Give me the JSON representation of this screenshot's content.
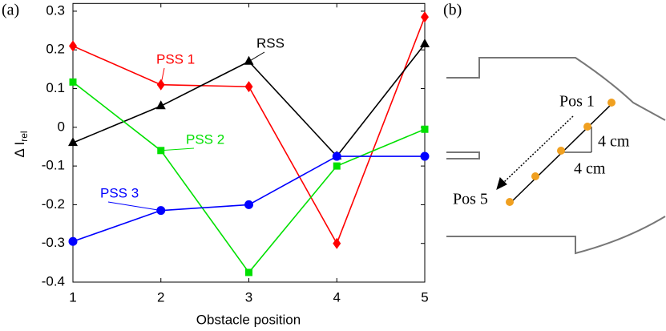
{
  "chart_data": {
    "type": "line",
    "panel_label": "(a)",
    "xlabel": "Obstacle position",
    "ylabel": "Δ I",
    "ylabel_sub": "rel",
    "x": [
      1,
      2,
      3,
      4,
      5
    ],
    "xlim": [
      1,
      5
    ],
    "xticks": [
      1,
      2,
      3,
      4,
      5
    ],
    "ylim": [
      -0.4,
      0.32
    ],
    "yticks": [
      0.3,
      0.2,
      0.1,
      0,
      -0.1,
      -0.2,
      -0.3,
      -0.4
    ],
    "series": [
      {
        "name": "PSS 1",
        "color": "#ff0000",
        "marker": "diamond",
        "values": [
          0.21,
          0.11,
          0.105,
          -0.3,
          0.285
        ]
      },
      {
        "name": "RSS",
        "color": "#000000",
        "marker": "triangle",
        "values": [
          -0.04,
          0.055,
          0.17,
          -0.075,
          0.215
        ]
      },
      {
        "name": "PSS 2",
        "color": "#00e000",
        "marker": "square",
        "values": [
          0.117,
          -0.06,
          -0.375,
          -0.1,
          -0.005
        ]
      },
      {
        "name": "PSS 3",
        "color": "#0000ff",
        "marker": "circle",
        "values": [
          -0.295,
          -0.215,
          -0.2,
          -0.075,
          -0.075
        ]
      }
    ]
  },
  "panel_b": {
    "panel_label": "(b)",
    "pos_start": "Pos 1",
    "pos_end": "Pos 5",
    "dy_label": "4 cm",
    "dx_label": "4 cm"
  }
}
